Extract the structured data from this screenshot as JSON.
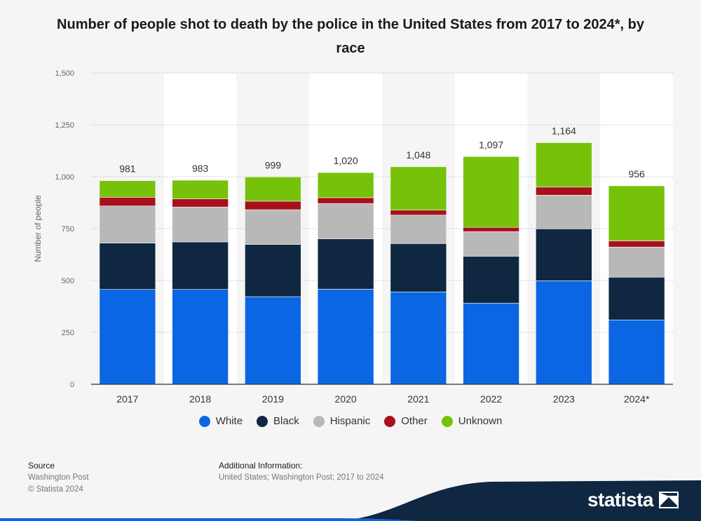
{
  "title": "Number of people shot to death by the police in the United States from 2017 to 2024*, by race",
  "footer": {
    "source_heading": "Source",
    "source_text": "Washington Post",
    "copyright": "© Statista 2024",
    "additional_heading": "Additional Information:",
    "additional_text": "United States; Washington Post; 2017 to 2024"
  },
  "brand": {
    "name": "statista"
  },
  "colors": {
    "background": "#f5f5f5",
    "band": "#ffffff",
    "brand_navy": "#0f2741",
    "brand_blue": "#0b66e4"
  },
  "chart_data": {
    "type": "bar",
    "stacked": true,
    "title": "Number of people shot to death by the police in the United States from 2017 to 2024*, by race",
    "xlabel": "",
    "ylabel": "Number of people",
    "ylim": [
      0,
      1500
    ],
    "y_ticks": [
      0,
      250,
      500,
      750,
      1000,
      1250,
      1500
    ],
    "y_tick_labels": [
      "0",
      "250",
      "500",
      "750",
      "1,000",
      "1,250",
      "1,500"
    ],
    "grid": true,
    "legend_position": "bottom",
    "categories": [
      "2017",
      "2018",
      "2019",
      "2020",
      "2021",
      "2022",
      "2023",
      "2024*"
    ],
    "totals": [
      981,
      983,
      999,
      1020,
      1048,
      1097,
      1164,
      956
    ],
    "total_labels": [
      "981",
      "983",
      "999",
      "1,020",
      "1,048",
      "1,097",
      "1,164",
      "956"
    ],
    "series": [
      {
        "name": "White",
        "color": "#0b66e4",
        "values": [
          457,
          457,
          422,
          458,
          445,
          391,
          499,
          310
        ]
      },
      {
        "name": "Black",
        "color": "#0f2741",
        "values": [
          223,
          229,
          252,
          243,
          233,
          226,
          250,
          206
        ]
      },
      {
        "name": "Hispanic",
        "color": "#b8b8b8",
        "values": [
          179,
          168,
          167,
          170,
          137,
          118,
          162,
          145
        ]
      },
      {
        "name": "Other",
        "color": "#a8101c",
        "values": [
          42,
          39,
          41,
          28,
          24,
          21,
          39,
          30
        ]
      },
      {
        "name": "Unknown",
        "color": "#76c20a",
        "values": [
          80,
          90,
          117,
          121,
          209,
          341,
          214,
          265
        ]
      }
    ]
  }
}
